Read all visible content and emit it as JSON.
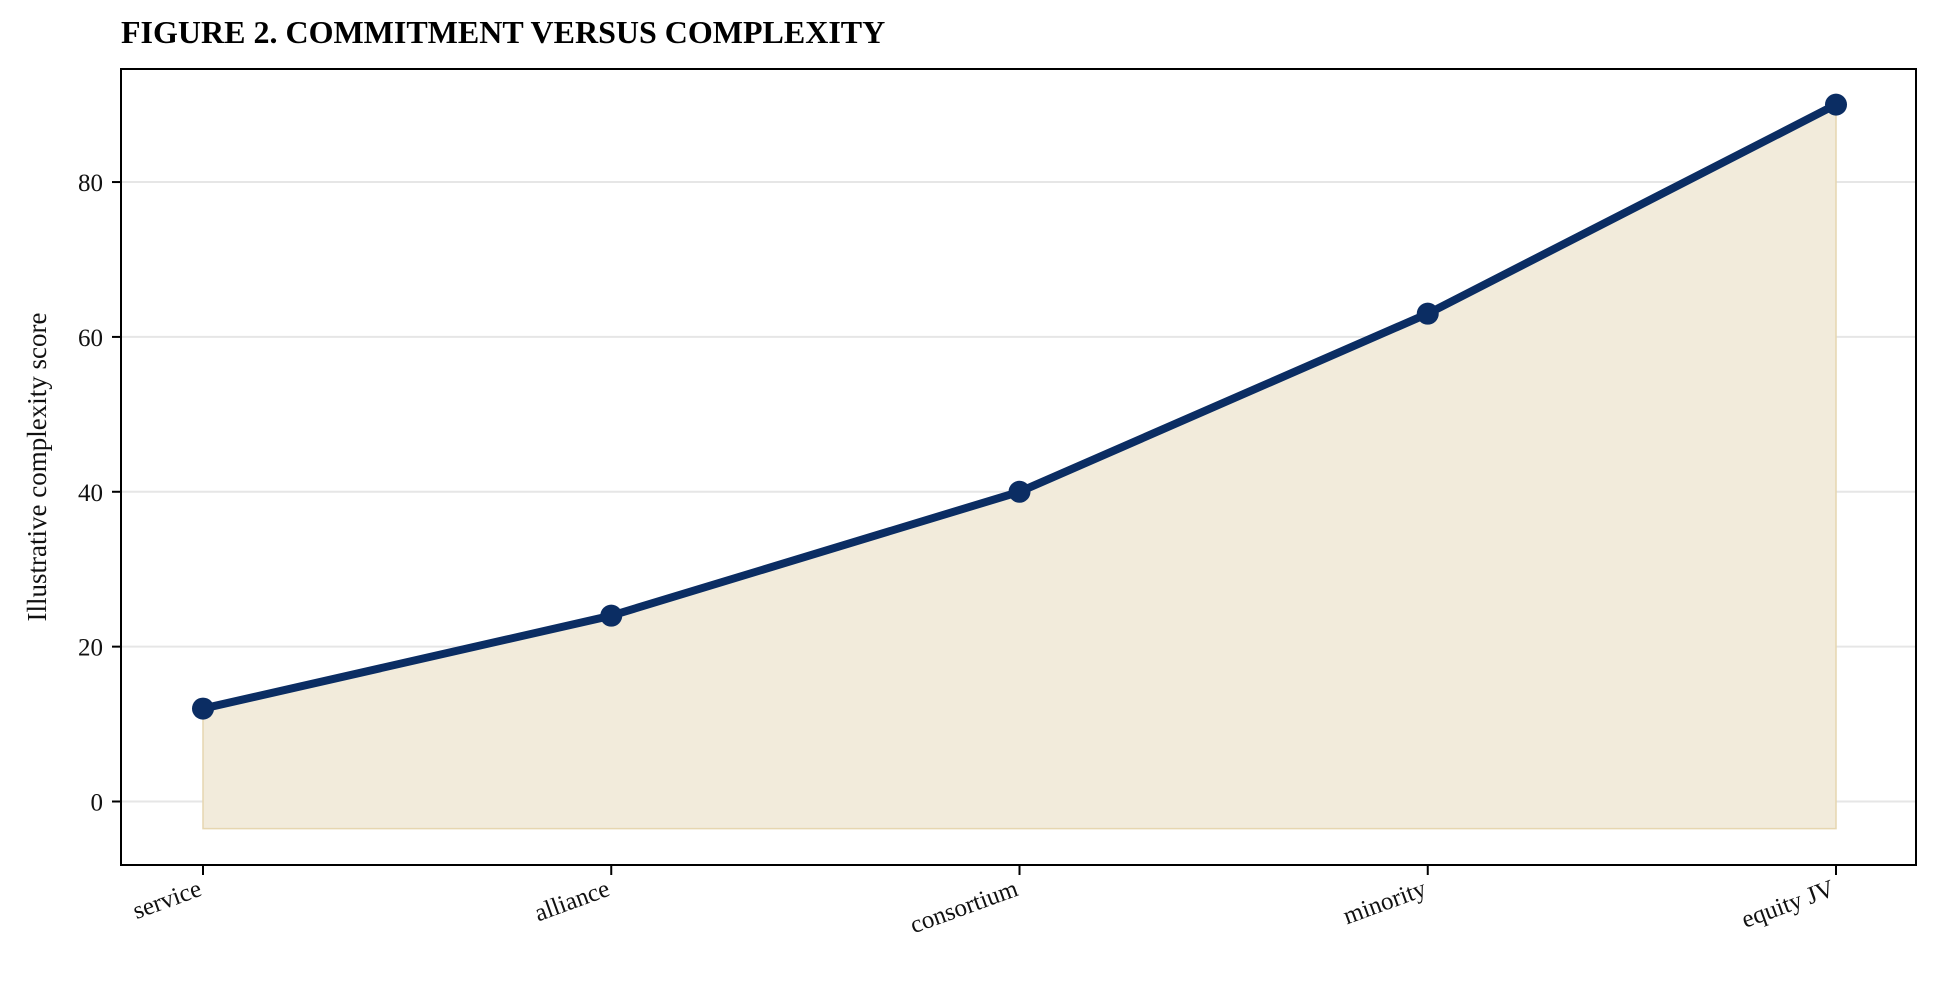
{
  "chart_data": {
    "type": "area",
    "title": "FIGURE 2. COMMITMENT VERSUS COMPLEXITY",
    "xlabel": "",
    "ylabel": "Illustrative complexity score",
    "categories": [
      "service",
      "alliance",
      "consortium",
      "minority",
      "equity JV"
    ],
    "series": [
      {
        "values": [
          12,
          24,
          40,
          63,
          90
        ]
      }
    ],
    "area_baseline": -3.5,
    "ylim": [
      -8.2,
      94.6
    ],
    "yticks": [
      0,
      20,
      40,
      60,
      80
    ],
    "grid": "horizontal",
    "colors": {
      "line": "#0b2d63",
      "fill": "#f2ebdb",
      "fill_edge": "#e6d6b0",
      "grid": "#e6e6e6"
    }
  }
}
